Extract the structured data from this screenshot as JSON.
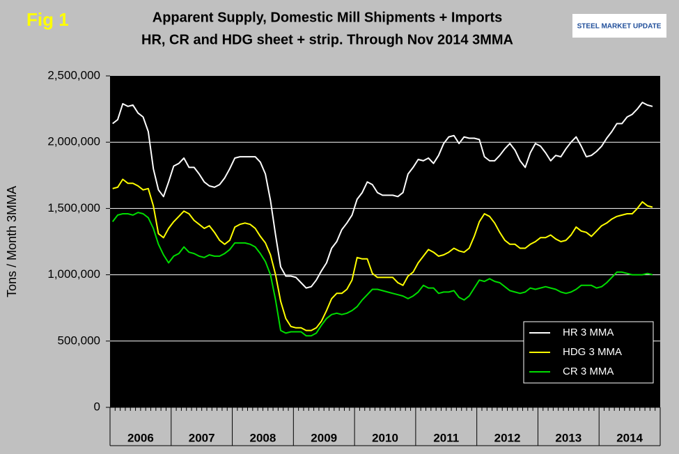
{
  "chart_data": {
    "type": "line",
    "figure_label": "Fig 1",
    "title": "Apparent Supply, Domestic Mill Shipments + Imports",
    "subtitle": "HR, CR and HDG sheet + strip. Through Nov 2014 3MMA",
    "logo": "STEEL MARKET UPDATE",
    "y_label": "Tons / Month 3MMA",
    "year_groups": [
      "2006",
      "2007",
      "2008",
      "2009",
      "2010",
      "2011",
      "2012",
      "2013",
      "2014"
    ],
    "ylim": [
      0,
      2500000
    ],
    "yticks": [
      0,
      {
        "value": 500000,
        "label": "500,000"
      },
      {
        "value": 1000000,
        "label": "1,000,000"
      },
      {
        "value": 1500000,
        "label": "1,500,000"
      },
      {
        "value": 2000000,
        "label": "2,000,000"
      },
      {
        "value": 2500000,
        "label": "2,500,000"
      }
    ],
    "grid": true,
    "legend": "lower right",
    "series": [
      {
        "name": "HR 3 MMA",
        "color": "#ffffff",
        "values": [
          2140000,
          2170000,
          2290000,
          2270000,
          2280000,
          2220000,
          2190000,
          2080000,
          1800000,
          1640000,
          1590000,
          1700000,
          1820000,
          1840000,
          1880000,
          1810000,
          1810000,
          1760000,
          1700000,
          1670000,
          1660000,
          1680000,
          1730000,
          1800000,
          1880000,
          1890000,
          1890000,
          1890000,
          1890000,
          1850000,
          1760000,
          1560000,
          1300000,
          1060000,
          990000,
          990000,
          980000,
          940000,
          900000,
          910000,
          960000,
          1030000,
          1090000,
          1200000,
          1250000,
          1340000,
          1390000,
          1450000,
          1570000,
          1620000,
          1700000,
          1680000,
          1620000,
          1600000,
          1600000,
          1600000,
          1590000,
          1620000,
          1760000,
          1810000,
          1870000,
          1860000,
          1880000,
          1840000,
          1900000,
          1990000,
          2040000,
          2050000,
          1990000,
          2040000,
          2030000,
          2030000,
          2020000,
          1890000,
          1860000,
          1860000,
          1900000,
          1950000,
          1990000,
          1940000,
          1860000,
          1810000,
          1920000,
          1990000,
          1970000,
          1920000,
          1860000,
          1900000,
          1890000,
          1950000,
          2000000,
          2040000,
          1970000,
          1890000,
          1900000,
          1930000,
          1970000,
          2030000,
          2080000,
          2140000,
          2140000,
          2190000,
          2210000,
          2250000,
          2300000,
          2280000,
          2270000
        ]
      },
      {
        "name": "HDG 3 MMA",
        "color": "#ffff00",
        "values": [
          1650000,
          1660000,
          1720000,
          1690000,
          1690000,
          1670000,
          1640000,
          1650000,
          1520000,
          1310000,
          1280000,
          1350000,
          1400000,
          1440000,
          1480000,
          1460000,
          1410000,
          1380000,
          1350000,
          1370000,
          1320000,
          1260000,
          1230000,
          1260000,
          1360000,
          1380000,
          1390000,
          1380000,
          1350000,
          1290000,
          1240000,
          1150000,
          1000000,
          800000,
          670000,
          610000,
          600000,
          600000,
          580000,
          580000,
          600000,
          650000,
          730000,
          820000,
          860000,
          860000,
          890000,
          960000,
          1130000,
          1120000,
          1120000,
          1010000,
          980000,
          980000,
          980000,
          980000,
          940000,
          920000,
          990000,
          1020000,
          1090000,
          1140000,
          1190000,
          1170000,
          1140000,
          1150000,
          1170000,
          1200000,
          1180000,
          1170000,
          1200000,
          1290000,
          1400000,
          1460000,
          1440000,
          1390000,
          1320000,
          1260000,
          1230000,
          1230000,
          1200000,
          1200000,
          1230000,
          1250000,
          1280000,
          1280000,
          1300000,
          1270000,
          1250000,
          1260000,
          1300000,
          1360000,
          1330000,
          1320000,
          1290000,
          1330000,
          1370000,
          1390000,
          1420000,
          1440000,
          1450000,
          1460000,
          1460000,
          1500000,
          1550000,
          1520000,
          1510000
        ]
      },
      {
        "name": "CR 3 MMA",
        "color": "#00dd00",
        "values": [
          1400000,
          1450000,
          1460000,
          1460000,
          1450000,
          1470000,
          1460000,
          1430000,
          1350000,
          1230000,
          1150000,
          1090000,
          1140000,
          1160000,
          1210000,
          1170000,
          1160000,
          1140000,
          1130000,
          1150000,
          1140000,
          1140000,
          1160000,
          1190000,
          1240000,
          1240000,
          1240000,
          1230000,
          1210000,
          1160000,
          1100000,
          1000000,
          810000,
          580000,
          560000,
          570000,
          570000,
          570000,
          540000,
          540000,
          560000,
          620000,
          670000,
          700000,
          710000,
          700000,
          710000,
          730000,
          760000,
          810000,
          850000,
          890000,
          890000,
          880000,
          870000,
          860000,
          850000,
          840000,
          820000,
          840000,
          870000,
          920000,
          900000,
          900000,
          860000,
          870000,
          870000,
          880000,
          830000,
          810000,
          840000,
          900000,
          960000,
          950000,
          970000,
          950000,
          940000,
          910000,
          880000,
          870000,
          860000,
          870000,
          900000,
          890000,
          900000,
          910000,
          900000,
          890000,
          870000,
          860000,
          870000,
          890000,
          920000,
          920000,
          920000,
          900000,
          910000,
          940000,
          980000,
          1020000,
          1020000,
          1010000,
          1000000,
          1000000,
          1000000,
          1010000,
          1000000
        ]
      }
    ]
  }
}
